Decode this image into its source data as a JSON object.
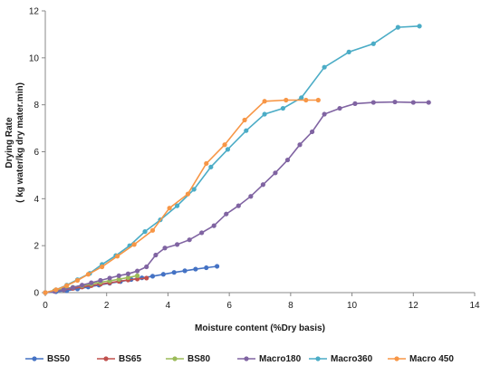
{
  "chart_data": {
    "type": "scatter",
    "mode": "lines+markers",
    "title": "",
    "xlabel": "Moisture content (%Dry basis)",
    "ylabel_lines": [
      "Drying Rate",
      "( kg water/kg dry mater.min)"
    ],
    "xlim": [
      0,
      14
    ],
    "ylim": [
      0,
      12
    ],
    "x_ticks": [
      0,
      2,
      4,
      6,
      8,
      10,
      12,
      14
    ],
    "y_ticks": [
      0,
      2,
      4,
      6,
      8,
      10,
      12
    ],
    "x_tick_labels": [
      "0",
      "2",
      "4",
      "6",
      "8",
      "10",
      "12",
      "14"
    ],
    "y_tick_labels": [
      "0",
      "2",
      "4",
      "6",
      "8",
      "10",
      "12"
    ],
    "grid": false,
    "legend_position": "bottom",
    "series": [
      {
        "name": "BS50",
        "color": "#4472C4",
        "x": [
          0.0,
          0.35,
          0.7,
          1.05,
          1.4,
          1.75,
          2.1,
          2.45,
          2.8,
          3.15,
          3.5,
          3.85,
          4.2,
          4.55,
          4.9,
          5.25,
          5.6
        ],
        "y": [
          0.0,
          0.04,
          0.08,
          0.16,
          0.24,
          0.32,
          0.4,
          0.47,
          0.56,
          0.63,
          0.7,
          0.78,
          0.86,
          0.93,
          1.0,
          1.06,
          1.12
        ]
      },
      {
        "name": "BS65",
        "color": "#C0504D",
        "x": [
          0.0,
          0.3,
          0.6,
          0.9,
          1.2,
          1.5,
          1.8,
          2.1,
          2.4,
          2.7,
          3.0,
          3.3
        ],
        "y": [
          0.0,
          0.06,
          0.12,
          0.18,
          0.24,
          0.3,
          0.36,
          0.42,
          0.48,
          0.54,
          0.58,
          0.62
        ]
      },
      {
        "name": "BS80",
        "color": "#9BBB59",
        "x": [
          0.0,
          0.3,
          0.6,
          0.9,
          1.2,
          1.5,
          1.8,
          2.1,
          2.4,
          2.7,
          3.0
        ],
        "y": [
          0.0,
          0.08,
          0.16,
          0.23,
          0.3,
          0.37,
          0.44,
          0.5,
          0.57,
          0.64,
          0.72
        ]
      },
      {
        "name": "Macro180",
        "color": "#8064A2",
        "x": [
          0.0,
          0.3,
          0.6,
          0.9,
          1.2,
          1.5,
          1.8,
          2.1,
          2.4,
          2.7,
          3.0,
          3.3,
          3.6,
          3.9,
          4.3,
          4.7,
          5.1,
          5.5,
          5.9,
          6.3,
          6.7,
          7.1,
          7.5,
          7.9,
          8.3,
          8.7,
          9.1,
          9.6,
          10.1,
          10.7,
          11.4,
          12.0,
          12.5
        ],
        "y": [
          0.0,
          0.05,
          0.12,
          0.22,
          0.32,
          0.42,
          0.52,
          0.62,
          0.72,
          0.8,
          0.92,
          1.1,
          1.6,
          1.9,
          2.05,
          2.25,
          2.55,
          2.85,
          3.35,
          3.7,
          4.1,
          4.6,
          5.1,
          5.65,
          6.3,
          6.85,
          7.6,
          7.85,
          8.05,
          8.1,
          8.12,
          8.1,
          8.1
        ]
      },
      {
        "name": "Macro360",
        "color": "#4BACC6",
        "x": [
          0.0,
          0.35,
          0.7,
          1.05,
          1.45,
          1.85,
          2.3,
          2.75,
          3.25,
          3.75,
          4.3,
          4.85,
          5.4,
          5.95,
          6.55,
          7.15,
          7.75,
          8.35,
          9.1,
          9.9,
          10.7,
          11.5,
          12.2
        ],
        "y": [
          0.0,
          0.12,
          0.32,
          0.55,
          0.82,
          1.2,
          1.58,
          2.0,
          2.6,
          3.1,
          3.7,
          4.4,
          5.35,
          6.1,
          6.9,
          7.6,
          7.85,
          8.3,
          9.6,
          10.25,
          10.6,
          11.3,
          11.35
        ]
      },
      {
        "name": "Macro 450",
        "color": "#F79646",
        "x": [
          0.0,
          0.35,
          0.7,
          1.05,
          1.4,
          1.85,
          2.35,
          2.9,
          3.5,
          4.05,
          4.65,
          5.25,
          5.85,
          6.5,
          7.15,
          7.85,
          8.5,
          8.9
        ],
        "y": [
          0.0,
          0.12,
          0.3,
          0.52,
          0.78,
          1.1,
          1.55,
          2.05,
          2.65,
          3.6,
          4.2,
          5.5,
          6.3,
          7.35,
          8.15,
          8.2,
          8.2,
          8.2
        ]
      }
    ]
  }
}
